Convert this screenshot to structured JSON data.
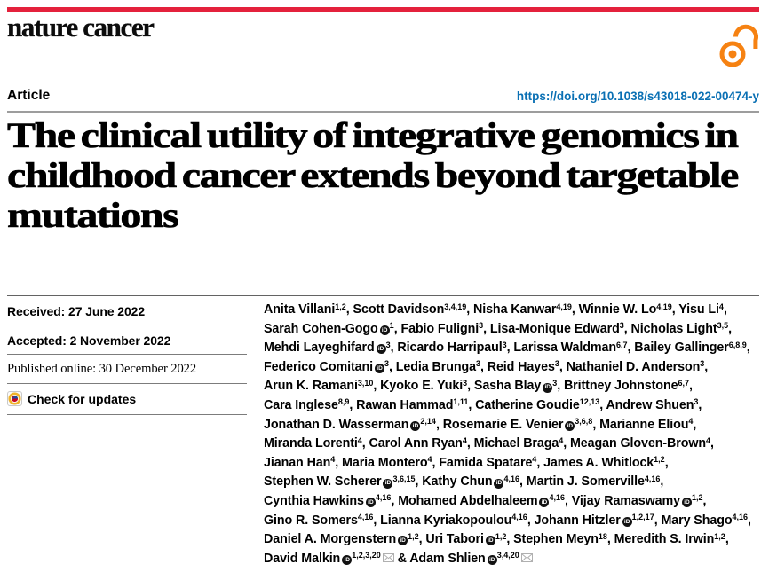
{
  "masthead": {
    "journal": "nature cancer"
  },
  "header": {
    "article_label": "Article",
    "doi": "https://doi.org/10.1038/s43018-022-00474-y"
  },
  "title_lines": [
    "The clinical utility of integrative genomics in",
    "childhood cancer extends beyond targetable",
    "mutations"
  ],
  "meta": {
    "rows": [
      {
        "text": "Received: 27 June 2022"
      },
      {
        "text": "Accepted: 2 November 2022"
      },
      {
        "text": "Published online: 30 December 2022"
      }
    ],
    "check_for_updates": "Check for updates"
  },
  "icons": {
    "orcid_label": "iD"
  },
  "colors": {
    "brand_red": "#e4213c",
    "link_blue": "#0a70b4",
    "open_access_orange": "#f68212"
  },
  "authors": {
    "lines": [
      [
        {
          "n": "Anita Villani",
          "s": "1,2"
        },
        {
          "n": "Scott Davidson",
          "s": "3,4,19"
        },
        {
          "n": "Nisha Kanwar",
          "s": "4,19"
        },
        {
          "n": "Winnie W. Lo",
          "s": "4,19"
        },
        {
          "n": "Yisu Li",
          "s": "4",
          "e": ","
        }
      ],
      [
        {
          "n": "Sarah Cohen-Gogo",
          "o": true,
          "s": "1"
        },
        {
          "n": "Fabio Fuligni",
          "s": "3"
        },
        {
          "n": "Lisa-Monique Edward",
          "s": "3"
        },
        {
          "n": "Nicholas Light",
          "s": "3,5",
          "e": ","
        }
      ],
      [
        {
          "n": "Mehdi Layeghifard",
          "o": true,
          "s": "3"
        },
        {
          "n": "Ricardo Harripaul",
          "s": "3"
        },
        {
          "n": "Larissa Waldman",
          "s": "6,7"
        },
        {
          "n": "Bailey Gallinger",
          "s": "6,8,9",
          "e": ","
        }
      ],
      [
        {
          "n": "Federico Comitani",
          "o": true,
          "s": "3"
        },
        {
          "n": "Ledia Brunga",
          "s": "3"
        },
        {
          "n": "Reid Hayes",
          "s": "3"
        },
        {
          "n": "Nathaniel D. Anderson",
          "s": "3",
          "e": ","
        }
      ],
      [
        {
          "n": "Arun K. Ramani",
          "s": "3,10"
        },
        {
          "n": "Kyoko E. Yuki",
          "s": "3"
        },
        {
          "n": "Sasha Blay",
          "o": true,
          "s": "3"
        },
        {
          "n": "Brittney Johnstone",
          "s": "6,7",
          "e": ","
        }
      ],
      [
        {
          "n": "Cara Inglese",
          "s": "8,9"
        },
        {
          "n": "Rawan Hammad",
          "s": "1,11"
        },
        {
          "n": "Catherine Goudie",
          "s": "12,13"
        },
        {
          "n": "Andrew Shuen",
          "s": "3",
          "e": ","
        }
      ],
      [
        {
          "n": "Jonathan D. Wasserman",
          "o": true,
          "s": "2,14"
        },
        {
          "n": "Rosemarie E. Venier",
          "o": true,
          "s": "3,6,8"
        },
        {
          "n": "Marianne Eliou",
          "s": "4",
          "e": ","
        }
      ],
      [
        {
          "n": "Miranda Lorenti",
          "s": "4"
        },
        {
          "n": "Carol Ann Ryan",
          "s": "4"
        },
        {
          "n": "Michael Braga",
          "s": "4"
        },
        {
          "n": "Meagan Gloven-Brown",
          "s": "4",
          "e": ","
        }
      ],
      [
        {
          "n": "Jianan Han",
          "s": "4"
        },
        {
          "n": "Maria Montero",
          "s": "4"
        },
        {
          "n": "Famida Spatare",
          "s": "4"
        },
        {
          "n": "James A. Whitlock",
          "s": "1,2",
          "e": ","
        }
      ],
      [
        {
          "n": "Stephen W. Scherer",
          "o": true,
          "s": "3,6,15"
        },
        {
          "n": "Kathy Chun",
          "o": true,
          "s": "4,16"
        },
        {
          "n": "Martin J. Somerville",
          "s": "4,16",
          "e": ","
        }
      ],
      [
        {
          "n": "Cynthia Hawkins",
          "o": true,
          "s": "4,16"
        },
        {
          "n": "Mohamed Abdelhaleem",
          "o": true,
          "s": "4,16"
        },
        {
          "n": "Vijay Ramaswamy",
          "o": true,
          "s": "1,2",
          "e": ","
        }
      ],
      [
        {
          "n": "Gino R. Somers",
          "s": "4,16"
        },
        {
          "n": "Lianna Kyriakopoulou",
          "s": "4,16"
        },
        {
          "n": "Johann Hitzler",
          "o": true,
          "s": "1,2,17"
        },
        {
          "n": "Mary Shago",
          "s": "4,16",
          "e": ","
        }
      ],
      [
        {
          "n": "Daniel A. Morgenstern",
          "o": true,
          "s": "1,2"
        },
        {
          "n": "Uri Tabori",
          "o": true,
          "s": "1,2"
        },
        {
          "n": "Stephen Meyn",
          "s": "18"
        },
        {
          "n": "Meredith S. Irwin",
          "s": "1,2",
          "e": ","
        }
      ],
      [
        {
          "n": "David Malkin",
          "o": true,
          "s": "1,2,3,20",
          "m": true,
          "e": ""
        },
        {
          "n": "Adam Shlien",
          "p": " & ",
          "o": true,
          "s": "3,4,20",
          "m": true,
          "e": ""
        }
      ]
    ]
  }
}
